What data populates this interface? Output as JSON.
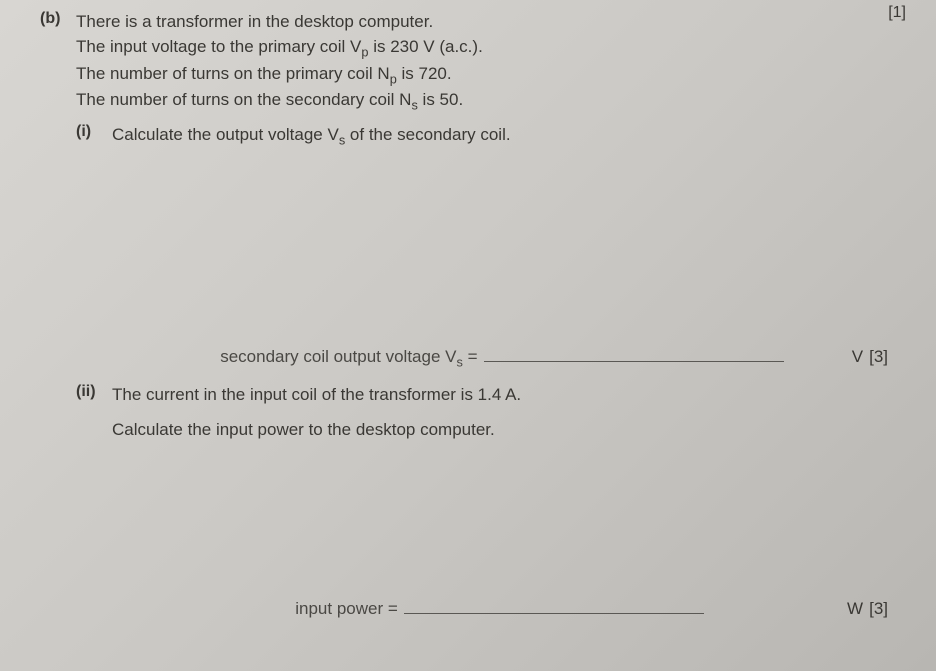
{
  "topRight": "[1]",
  "partB": {
    "label": "(b)",
    "lines": [
      "There is a transformer in the desktop computer.",
      "The input voltage to the primary coil V<sub>p</sub> is 230 V (a.c.).",
      "The number of turns on the primary coil N<sub>p</sub> is 720.",
      "The number of turns on the secondary coil N<sub>s</sub> is 50."
    ]
  },
  "qi": {
    "label": "(i)",
    "text": "Calculate the output voltage V<sub>s</sub> of the secondary coil.",
    "answerPrefix": "secondary coil output voltage V<sub>s</sub> =",
    "unit": "V",
    "marks": "[3]"
  },
  "qii": {
    "label": "(ii)",
    "line1": "The current in the input coil of the transformer is 1.4 A.",
    "line2": "Calculate the input power to the desktop computer.",
    "answerPrefix": "input power =",
    "unit": "W",
    "marks": "[3]"
  },
  "style": {
    "textColor": "#3a3834",
    "lineColor": "#5a5854",
    "fontSizePt": 13
  }
}
